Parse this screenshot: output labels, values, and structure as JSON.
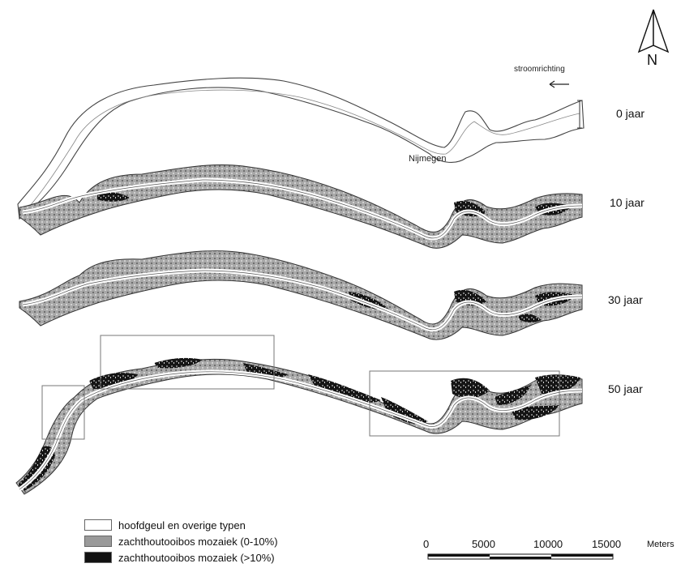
{
  "map": {
    "north_label": "N",
    "flow_label": "stroomrichting",
    "city_label": "Nijmegen",
    "panels": [
      {
        "year_label": "0 jaar"
      },
      {
        "year_label": "10 jaar"
      },
      {
        "year_label": "30 jaar"
      },
      {
        "year_label": "50 jaar"
      }
    ]
  },
  "legend": {
    "items": [
      {
        "label": "hoofdgeul en overige typen",
        "color": "#ffffff"
      },
      {
        "label": "zachthoutooibos mozaiek (0-10%)",
        "color": "#9a9a9a"
      },
      {
        "label": "zachthoutooibos mozaiek (>10%)",
        "color": "#111111"
      }
    ]
  },
  "scale_bar": {
    "ticks": [
      "0",
      "5000",
      "10000",
      "15000"
    ],
    "unit": "Meters"
  }
}
